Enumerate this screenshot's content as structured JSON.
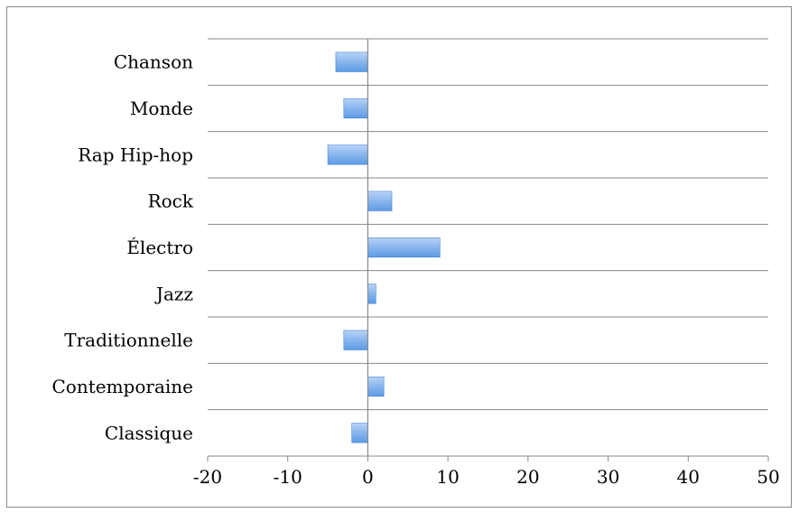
{
  "chart_data": {
    "type": "bar",
    "orientation": "horizontal",
    "categories": [
      "Classique",
      "Contemporaine",
      "Traditionnelle",
      "Jazz",
      "Électro",
      "Rock",
      "Rap Hip-hop",
      "Monde",
      "Chanson"
    ],
    "values": [
      -2,
      2,
      -3,
      1,
      9,
      3,
      -5,
      -3,
      -4
    ],
    "x_ticks": [
      "-20",
      "-10",
      "0",
      "10",
      "20",
      "30",
      "40",
      "50"
    ],
    "xlim": [
      -20,
      50
    ],
    "grid": "horizontal",
    "legend": "none",
    "title": "",
    "xlabel": "",
    "ylabel": "",
    "colors": {
      "bar_fill_top": "#b9d3f5",
      "bar_fill_bottom": "#5b9be6",
      "bar_stroke": "#4a86cf",
      "grid": "#8a8a8a",
      "axis": "#8a8a8a"
    }
  }
}
